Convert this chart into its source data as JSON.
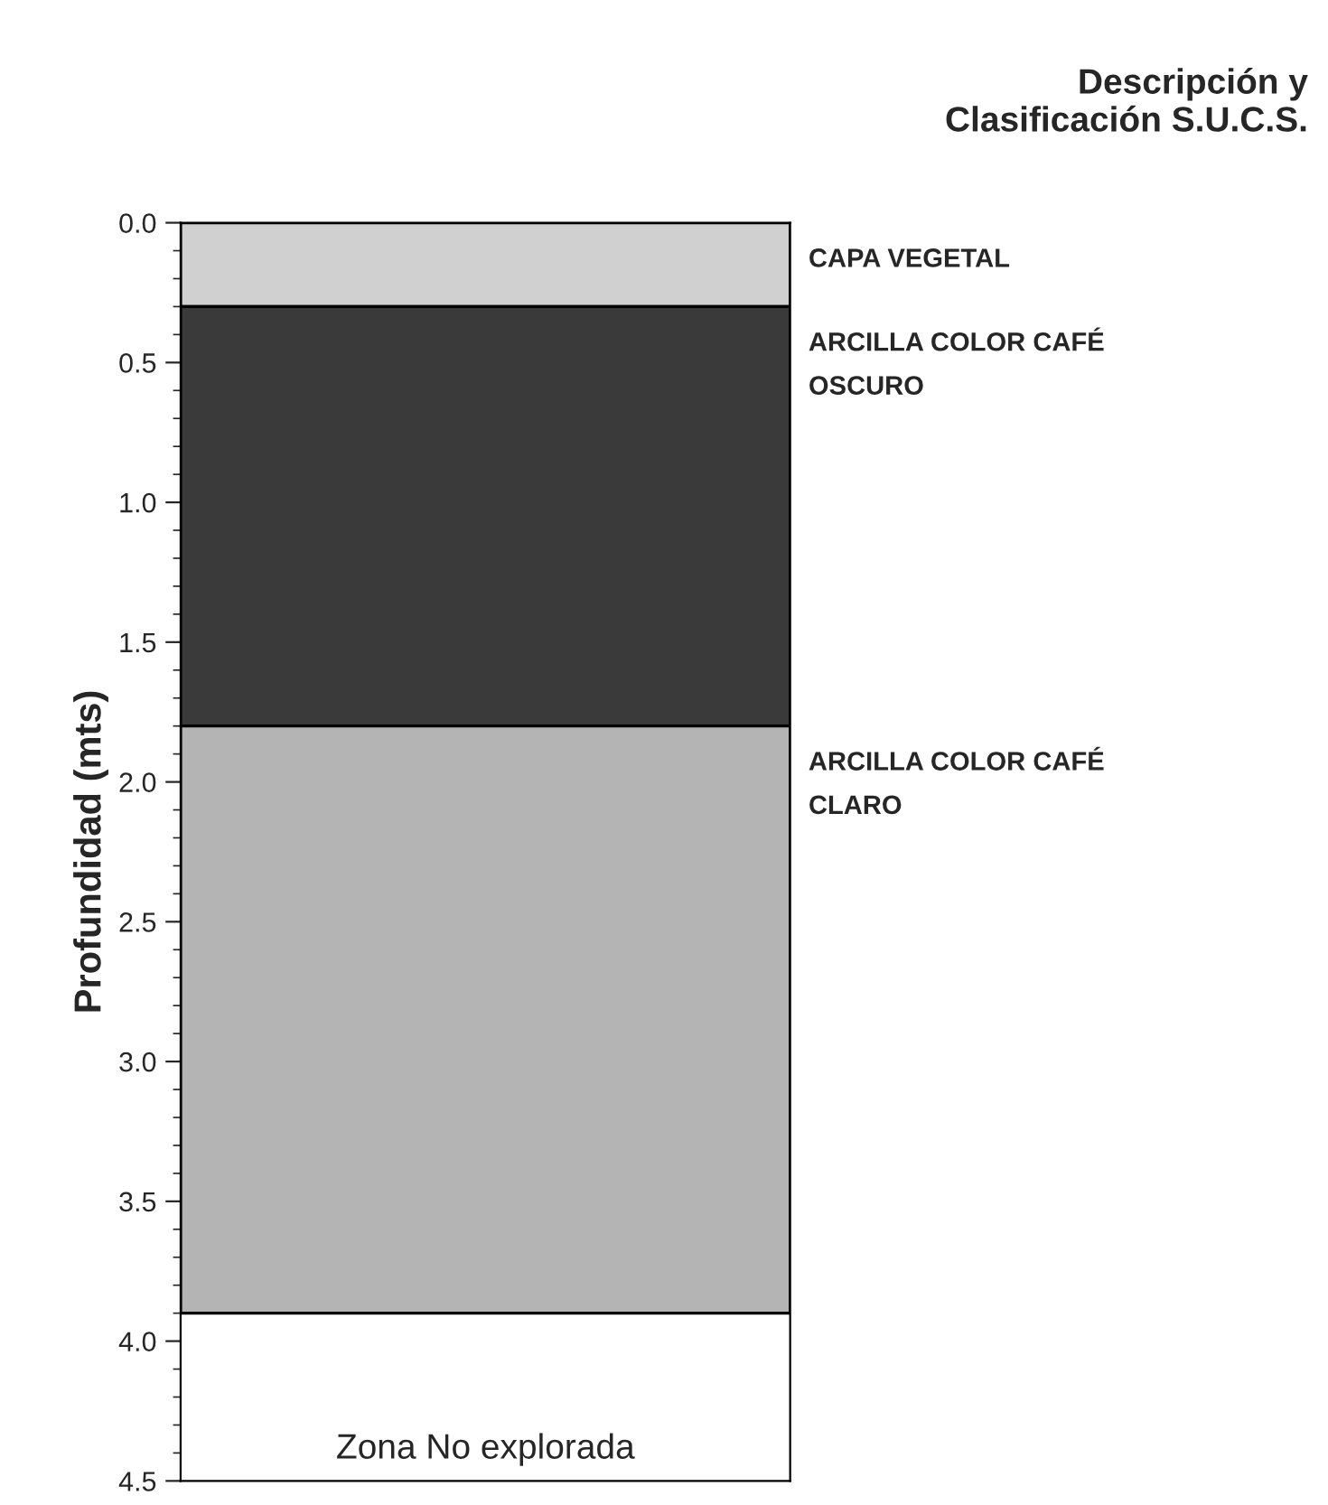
{
  "chart_data": {
    "type": "bar",
    "stacked": true,
    "title": "Descripción y\nClasificación S.U.C.S.",
    "ylabel": "Profundidad (mts)",
    "categories": [
      null
    ],
    "series": [
      {
        "color": "#d0d0d0",
        "values": [
          0.3
        ]
      },
      {
        "color": "#3a3a3a",
        "values": [
          1.5
        ]
      },
      {
        "color": "#b4b4b4",
        "values": [
          2.1
        ]
      }
    ],
    "ylim": [
      4.5,
      0
    ],
    "yticks": [
      {
        "value": 0,
        "label": "0.0"
      },
      0.5,
      {
        "value": 1,
        "label": "1.0"
      },
      1.5,
      {
        "value": 2,
        "label": "2.0"
      },
      2.5,
      {
        "value": 3,
        "label": "3.0"
      },
      3.5,
      {
        "value": 4,
        "label": "4.0"
      },
      4.5
    ],
    "grid": false,
    "legend": false,
    "annotations": [
      "CAPA VEGETAL",
      "ARCILLA COLOR CAFÉ\nOSCURO",
      "ARCILLA COLOR CAFÉ\nCLARO",
      "Zona No explorada"
    ]
  }
}
